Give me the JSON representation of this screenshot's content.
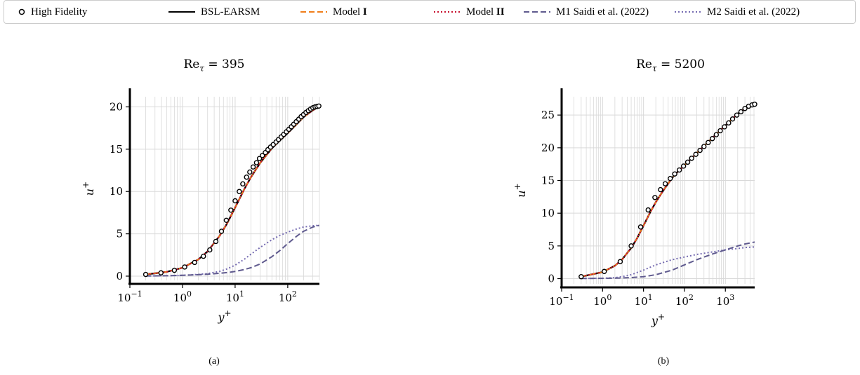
{
  "legend": {
    "items": [
      {
        "key": "hf",
        "label": "High Fidelity",
        "bold": "",
        "style": "marker"
      },
      {
        "key": "bsl",
        "label": "BSL-EARSM",
        "bold": "",
        "style": "solid"
      },
      {
        "key": "m1",
        "label": "Model ",
        "bold": "I",
        "style": "dashed"
      },
      {
        "key": "m2",
        "label": "Model ",
        "bold": "II",
        "style": "dotted"
      },
      {
        "key": "s1",
        "label": "M1 Saidi et al. (2022)",
        "bold": "",
        "style": "dashed"
      },
      {
        "key": "s2",
        "label": "M2 Saidi et al. (2022)",
        "bold": "",
        "style": "dotted"
      }
    ]
  },
  "colors": {
    "hf": "#000000",
    "bsl": "#000000",
    "m1": "#f07d1a",
    "m2": "#c8102e",
    "s1": "#5f5a8e",
    "s2": "#756bb1",
    "grid": "#d9d9d9",
    "axis": "#000000"
  },
  "panels": [
    {
      "id": "a",
      "title_main": "Re",
      "title_sub": "τ",
      "title_rest": " = 395",
      "caption": "(a)"
    },
    {
      "id": "b",
      "title_main": "Re",
      "title_sub": "τ",
      "title_rest": " = 5200",
      "caption": "(b)"
    }
  ],
  "chart_data": [
    {
      "type": "line",
      "title": "Re_τ = 395",
      "xlabel": "y+",
      "ylabel": "u+",
      "xscale": "log",
      "xlim": [
        0.1,
        400
      ],
      "ylim": [
        -0.5,
        21.2
      ],
      "xticks": [
        0.1,
        1,
        10,
        100
      ],
      "xtick_labels": [
        "10^-1",
        "10^0",
        "10^1",
        "10^2"
      ],
      "yticks": [
        0,
        5,
        10,
        15,
        20
      ],
      "ytick_labels": [
        "0",
        "5",
        "10",
        "15",
        "20"
      ],
      "grid": true,
      "series": [
        {
          "name": "High Fidelity",
          "key": "hf",
          "style": "marker",
          "x": [
            0.2,
            0.39,
            0.7,
            1.1,
            1.7,
            2.5,
            3.3,
            4.3,
            5.5,
            6.8,
            8.3,
            10,
            12,
            14,
            16.5,
            19,
            22,
            25.5,
            29,
            33,
            37.5,
            42,
            47,
            53,
            60,
            67,
            75,
            84,
            94,
            105,
            117,
            130,
            145,
            162,
            180,
            200,
            222,
            246,
            272,
            300,
            330,
            360,
            390
          ],
          "y": [
            0.2,
            0.39,
            0.69,
            1.08,
            1.62,
            2.35,
            3.1,
            4.1,
            5.3,
            6.6,
            7.8,
            8.9,
            10.0,
            10.9,
            11.7,
            12.3,
            12.9,
            13.4,
            13.9,
            14.25,
            14.6,
            14.95,
            15.25,
            15.55,
            15.85,
            16.15,
            16.45,
            16.75,
            17.05,
            17.35,
            17.65,
            17.95,
            18.25,
            18.55,
            18.85,
            19.1,
            19.35,
            19.55,
            19.75,
            19.9,
            20.0,
            20.05,
            20.1
          ]
        },
        {
          "name": "BSL-EARSM",
          "key": "bsl",
          "style": "solid",
          "x": [
            0.2,
            0.5,
            1,
            2,
            3,
            5,
            7,
            10,
            15,
            20,
            30,
            50,
            70,
            100,
            150,
            200,
            300,
            395
          ],
          "y": [
            0.2,
            0.5,
            0.99,
            1.97,
            2.92,
            4.7,
            6.2,
            8.1,
            10.3,
            11.7,
            13.4,
            15.1,
            16.0,
            16.9,
            18.0,
            18.8,
            19.6,
            20.05
          ]
        },
        {
          "name": "Model I",
          "key": "m1",
          "style": "dashed",
          "x": [
            0.2,
            0.5,
            1,
            2,
            3,
            5,
            7,
            10,
            15,
            20,
            30,
            50,
            70,
            100,
            150,
            200,
            300,
            395
          ],
          "y": [
            0.2,
            0.5,
            0.99,
            1.97,
            2.92,
            4.7,
            6.2,
            8.1,
            10.3,
            11.7,
            13.4,
            15.1,
            16.0,
            16.9,
            18.0,
            18.8,
            19.6,
            20.05
          ]
        },
        {
          "name": "Model II",
          "key": "m2",
          "style": "dotted",
          "x": [
            0.2,
            0.5,
            1,
            2,
            3,
            5,
            7,
            10,
            15,
            20,
            30,
            50,
            70,
            100,
            150,
            200,
            300,
            395
          ],
          "y": [
            0.2,
            0.5,
            0.99,
            1.97,
            2.92,
            4.7,
            6.2,
            8.1,
            10.3,
            11.7,
            13.4,
            15.1,
            16.0,
            16.9,
            18.0,
            18.8,
            19.6,
            20.05
          ]
        },
        {
          "name": "M1 Saidi et al. (2022)",
          "key": "s1",
          "style": "dashed",
          "x": [
            0.2,
            0.5,
            1,
            2,
            3,
            5,
            7,
            10,
            15,
            20,
            30,
            50,
            70,
            100,
            150,
            200,
            300,
            395
          ],
          "y": [
            0.02,
            0.05,
            0.1,
            0.17,
            0.23,
            0.33,
            0.42,
            0.55,
            0.78,
            1.0,
            1.45,
            2.3,
            3.0,
            3.85,
            4.75,
            5.3,
            5.8,
            6.0
          ]
        },
        {
          "name": "M2 Saidi et al. (2022)",
          "key": "s2",
          "style": "dotted",
          "x": [
            0.2,
            0.5,
            1,
            2,
            3,
            5,
            7,
            10,
            15,
            20,
            30,
            50,
            70,
            100,
            150,
            200,
            300,
            395
          ],
          "y": [
            0.02,
            0.05,
            0.1,
            0.2,
            0.3,
            0.55,
            0.85,
            1.3,
            2.0,
            2.6,
            3.4,
            4.3,
            4.8,
            5.2,
            5.6,
            5.8,
            5.95,
            6.0
          ]
        }
      ]
    },
    {
      "type": "line",
      "title": "Re_τ = 5200",
      "xlabel": "y+",
      "ylabel": "u+",
      "xscale": "log",
      "xlim": [
        0.1,
        5200
      ],
      "ylim": [
        -0.8,
        27.8
      ],
      "xticks": [
        0.1,
        1,
        10,
        100,
        1000
      ],
      "xtick_labels": [
        "10^-1",
        "10^0",
        "10^1",
        "10^2",
        "10^3"
      ],
      "yticks": [
        0,
        5,
        10,
        15,
        20,
        25
      ],
      "ytick_labels": [
        "0",
        "5",
        "10",
        "15",
        "20",
        "25"
      ],
      "grid": true,
      "series": [
        {
          "name": "High Fidelity",
          "key": "hf",
          "style": "marker",
          "x": [
            0.3,
            1.1,
            2.7,
            5,
            8.5,
            13,
            19,
            26,
            34,
            45,
            58,
            75,
            95,
            120,
            150,
            190,
            240,
            300,
            380,
            480,
            600,
            750,
            950,
            1200,
            1500,
            1900,
            2400,
            3000,
            3700,
            4500,
            5200
          ],
          "y": [
            0.3,
            1.1,
            2.6,
            5.0,
            7.9,
            10.5,
            12.4,
            13.6,
            14.5,
            15.3,
            16.0,
            16.6,
            17.2,
            17.8,
            18.4,
            19.0,
            19.6,
            20.2,
            20.8,
            21.4,
            22.0,
            22.6,
            23.2,
            23.8,
            24.4,
            25.0,
            25.5,
            26.0,
            26.35,
            26.55,
            26.65
          ]
        },
        {
          "name": "BSL-EARSM",
          "key": "bsl",
          "style": "solid",
          "x": [
            0.3,
            1,
            2,
            3,
            5,
            7,
            10,
            15,
            20,
            30,
            50,
            70,
            100,
            200,
            500,
            1000,
            2000,
            3000,
            5200
          ],
          "y": [
            0.3,
            1.0,
            1.97,
            2.92,
            4.7,
            6.2,
            8.1,
            10.3,
            11.7,
            13.4,
            15.4,
            16.4,
            17.3,
            19.2,
            21.6,
            23.4,
            25.2,
            26.0,
            26.65
          ]
        },
        {
          "name": "Model I",
          "key": "m1",
          "style": "dashed",
          "x": [
            0.3,
            1,
            2,
            3,
            5,
            7,
            10,
            15,
            20,
            30,
            50,
            70,
            100,
            200,
            500,
            1000,
            2000,
            3000,
            5200
          ],
          "y": [
            0.3,
            1.0,
            1.97,
            2.92,
            4.7,
            6.2,
            8.1,
            10.3,
            11.7,
            13.4,
            15.4,
            16.4,
            17.3,
            19.2,
            21.6,
            23.4,
            25.2,
            26.0,
            26.65
          ]
        },
        {
          "name": "Model II",
          "key": "m2",
          "style": "dotted",
          "x": [
            0.3,
            1,
            2,
            3,
            5,
            7,
            10,
            15,
            20,
            30,
            50,
            70,
            100,
            200,
            500,
            1000,
            2000,
            3000,
            5200
          ],
          "y": [
            0.3,
            1.0,
            1.97,
            2.92,
            4.7,
            6.2,
            8.1,
            10.3,
            11.7,
            13.4,
            15.4,
            16.4,
            17.3,
            19.2,
            21.6,
            23.4,
            25.2,
            26.0,
            26.65
          ]
        },
        {
          "name": "M1 Saidi et al. (2022)",
          "key": "s1",
          "style": "dashed",
          "x": [
            0.3,
            1,
            2,
            3,
            5,
            10,
            20,
            50,
            100,
            200,
            500,
            1000,
            2000,
            3000,
            5200
          ],
          "y": [
            0.02,
            0.05,
            0.08,
            0.11,
            0.16,
            0.3,
            0.6,
            1.3,
            2.1,
            2.9,
            3.8,
            4.4,
            5.0,
            5.3,
            5.6
          ]
        },
        {
          "name": "M2 Saidi et al. (2022)",
          "key": "s2",
          "style": "dotted",
          "x": [
            0.3,
            1,
            2,
            3,
            5,
            10,
            20,
            50,
            100,
            200,
            500,
            1000,
            2000,
            3000,
            5200
          ],
          "y": [
            0.02,
            0.06,
            0.15,
            0.3,
            0.6,
            1.3,
            2.1,
            2.9,
            3.3,
            3.7,
            4.1,
            4.4,
            4.6,
            4.75,
            4.85
          ]
        }
      ]
    }
  ]
}
